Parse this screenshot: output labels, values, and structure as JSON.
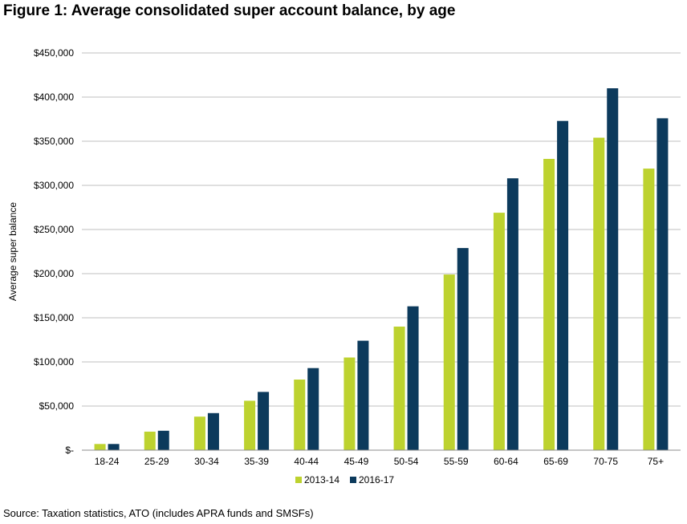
{
  "figure_title": "Figure 1: Average consolidated super account balance, by age",
  "source": "Source: Taxation statistics, ATO (includes APRA funds and SMSFs)",
  "colors": {
    "series_1": "#bdd22f",
    "series_2": "#0c3a5c",
    "grid": "#bfbfbf",
    "axis": "#8c8c8c"
  },
  "chart_data": {
    "type": "bar",
    "title": "Figure 1: Average consolidated super account balance, by age",
    "xlabel": "",
    "ylabel": "Average super balance",
    "ylim": [
      0,
      450000
    ],
    "yticks": [
      0,
      50000,
      100000,
      150000,
      200000,
      250000,
      300000,
      350000,
      400000,
      450000
    ],
    "ytick_labels": [
      "$-",
      "$50,000",
      "$100,000",
      "$150,000",
      "$200,000",
      "$250,000",
      "$300,000",
      "$350,000",
      "$400,000",
      "$450,000"
    ],
    "grid": true,
    "legend_position": "bottom",
    "categories": [
      "18-24",
      "25-29",
      "30-34",
      "35-39",
      "40-44",
      "45-49",
      "50-54",
      "55-59",
      "60-64",
      "65-69",
      "70-75",
      "75+"
    ],
    "series": [
      {
        "name": "2013-14",
        "values": [
          7000,
          21000,
          38000,
          56000,
          80000,
          105000,
          140000,
          199000,
          269000,
          330000,
          354000,
          319000
        ]
      },
      {
        "name": "2016-17",
        "values": [
          7000,
          22000,
          42000,
          66000,
          93000,
          124000,
          163000,
          229000,
          308000,
          373000,
          410000,
          376000
        ]
      }
    ]
  }
}
